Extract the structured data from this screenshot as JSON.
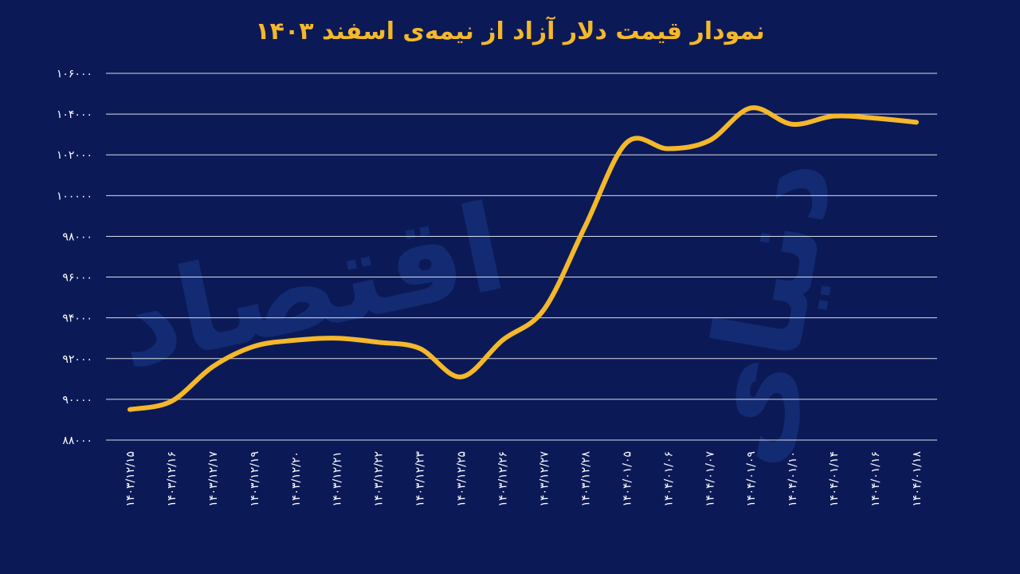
{
  "watermark": {
    "left": "اقتصاد",
    "right": "دنیای"
  },
  "chart_data": {
    "type": "line",
    "title": "نمودار قیمت دلار آزاد از نیمه‌ی اسفند ۱۴۰۳",
    "xlabel": "",
    "ylabel": "",
    "ylim": [
      88000,
      106000
    ],
    "yticks": [
      "۸۸۰۰۰",
      "۹۰۰۰۰",
      "۹۲۰۰۰",
      "۹۴۰۰۰",
      "۹۶۰۰۰",
      "۹۸۰۰۰",
      "۱۰۰۰۰۰",
      "۱۰۲۰۰۰",
      "۱۰۴۰۰۰",
      "۱۰۶۰۰۰"
    ],
    "ytick_values": [
      88000,
      90000,
      92000,
      94000,
      96000,
      98000,
      100000,
      102000,
      104000,
      106000
    ],
    "grid": true,
    "categories": [
      "۱۴۰۳/۱۲/۱۵",
      "۱۴۰۳/۱۲/۱۶",
      "۱۴۰۳/۱۲/۱۷",
      "۱۴۰۳/۱۲/۱۹",
      "۱۴۰۳/۱۲/۲۰",
      "۱۴۰۳/۱۲/۲۱",
      "۱۴۰۳/۱۲/۲۲",
      "۱۴۰۳/۱۲/۲۳",
      "۱۴۰۳/۱۲/۲۵",
      "۱۴۰۳/۱۲/۲۶",
      "۱۴۰۳/۱۲/۲۷",
      "۱۴۰۳/۱۲/۲۸",
      "۱۴۰۴/۰۱/۰۵",
      "۱۴۰۴/۰۱/۰۶",
      "۱۴۰۴/۰۱/۰۷",
      "۱۴۰۴/۰۱/۰۹",
      "۱۴۰۴/۰۱/۱۰",
      "۱۴۰۴/۰۱/۱۴",
      "۱۴۰۴/۰۱/۱۶",
      "۱۴۰۴/۰۱/۱۸"
    ],
    "series": [
      {
        "values": [
          89500,
          89900,
          91600,
          92600,
          92900,
          93000,
          92800,
          92500,
          91100,
          92900,
          94400,
          98500,
          102600,
          102300,
          102700,
          104300,
          103500,
          103900,
          103800,
          103600
        ]
      }
    ],
    "color": "#f5b82a"
  }
}
